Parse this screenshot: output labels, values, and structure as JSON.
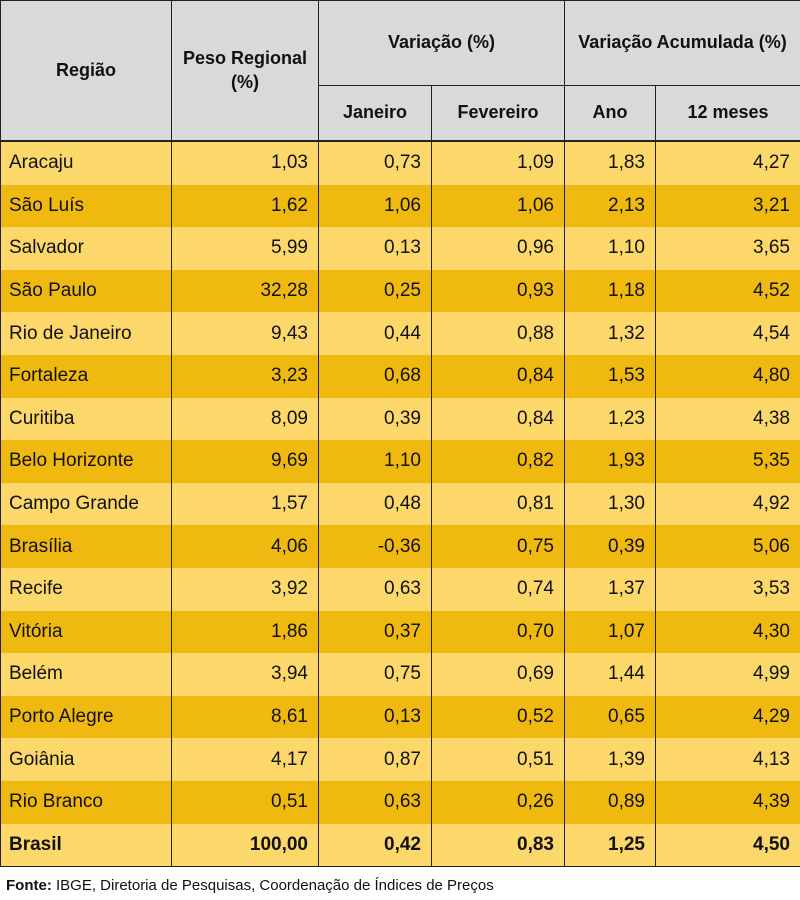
{
  "headers": {
    "regiao": "Região",
    "peso": "Peso Regional (%)",
    "variacao": "Variação (%)",
    "variacao_acumulada": "Variação Acumulada (%)",
    "janeiro": "Janeiro",
    "fevereiro": "Fevereiro",
    "ano": "Ano",
    "doze_meses": "12 meses"
  },
  "rows": [
    {
      "regiao": "Aracaju",
      "peso": "1,03",
      "jan": "0,73",
      "fev": "1,09",
      "ano": "1,83",
      "m12": "4,27"
    },
    {
      "regiao": "São Luís",
      "peso": "1,62",
      "jan": "1,06",
      "fev": "1,06",
      "ano": "2,13",
      "m12": "3,21"
    },
    {
      "regiao": "Salvador",
      "peso": "5,99",
      "jan": "0,13",
      "fev": "0,96",
      "ano": "1,10",
      "m12": "3,65"
    },
    {
      "regiao": "São Paulo",
      "peso": "32,28",
      "jan": "0,25",
      "fev": "0,93",
      "ano": "1,18",
      "m12": "4,52"
    },
    {
      "regiao": "Rio de Janeiro",
      "peso": "9,43",
      "jan": "0,44",
      "fev": "0,88",
      "ano": "1,32",
      "m12": "4,54"
    },
    {
      "regiao": "Fortaleza",
      "peso": "3,23",
      "jan": "0,68",
      "fev": "0,84",
      "ano": "1,53",
      "m12": "4,80"
    },
    {
      "regiao": "Curitiba",
      "peso": "8,09",
      "jan": "0,39",
      "fev": "0,84",
      "ano": "1,23",
      "m12": "4,38"
    },
    {
      "regiao": "Belo Horizonte",
      "peso": "9,69",
      "jan": "1,10",
      "fev": "0,82",
      "ano": "1,93",
      "m12": "5,35"
    },
    {
      "regiao": "Campo Grande",
      "peso": "1,57",
      "jan": "0,48",
      "fev": "0,81",
      "ano": "1,30",
      "m12": "4,92"
    },
    {
      "regiao": "Brasília",
      "peso": "4,06",
      "jan": "-0,36",
      "fev": "0,75",
      "ano": "0,39",
      "m12": "5,06"
    },
    {
      "regiao": "Recife",
      "peso": "3,92",
      "jan": "0,63",
      "fev": "0,74",
      "ano": "1,37",
      "m12": "3,53"
    },
    {
      "regiao": "Vitória",
      "peso": "1,86",
      "jan": "0,37",
      "fev": "0,70",
      "ano": "1,07",
      "m12": "4,30"
    },
    {
      "regiao": "Belém",
      "peso": "3,94",
      "jan": "0,75",
      "fev": "0,69",
      "ano": "1,44",
      "m12": "4,99"
    },
    {
      "regiao": "Porto Alegre",
      "peso": "8,61",
      "jan": "0,13",
      "fev": "0,52",
      "ano": "0,65",
      "m12": "4,29"
    },
    {
      "regiao": "Goiânia",
      "peso": "4,17",
      "jan": "0,87",
      "fev": "0,51",
      "ano": "1,39",
      "m12": "4,13"
    },
    {
      "regiao": "Rio Branco",
      "peso": "0,51",
      "jan": "0,63",
      "fev": "0,26",
      "ano": "0,89",
      "m12": "4,39"
    }
  ],
  "total": {
    "regiao": "Brasil",
    "peso": "100,00",
    "jan": "0,42",
    "fev": "0,83",
    "ano": "1,25",
    "m12": "4,50"
  },
  "source": {
    "label": "Fonte:",
    "text": " IBGE, Diretoria de Pesquisas, Coordenação de Índices de Preços"
  },
  "colors": {
    "header_bg": "#d9d9d9",
    "row_light": "#fcd76a",
    "row_dark": "#f0b90f"
  }
}
